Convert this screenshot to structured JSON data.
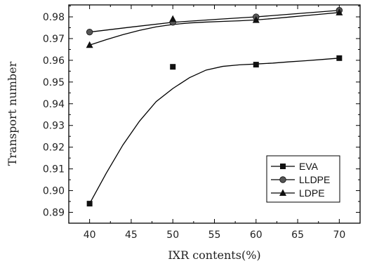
{
  "chart_data": {
    "type": "line",
    "xlabel": "IXR contents(%)",
    "ylabel": "Transport number",
    "xlim": [
      37.5,
      72.5
    ],
    "ylim": [
      0.885,
      0.9855
    ],
    "x_ticks": [
      40,
      45,
      50,
      55,
      60,
      65,
      70
    ],
    "y_ticks": [
      0.89,
      0.9,
      0.91,
      0.92,
      0.93,
      0.94,
      0.95,
      0.96,
      0.97,
      0.98
    ],
    "x_tick_labels": [
      "40",
      "45",
      "50",
      "55",
      "60",
      "65",
      "70"
    ],
    "y_tick_labels": [
      "0.89",
      "0.90",
      "0.91",
      "0.92",
      "0.93",
      "0.94",
      "0.95",
      "0.96",
      "0.97",
      "0.98"
    ],
    "grid": false,
    "legend_position": "lower-right",
    "series": [
      {
        "name": "EVA",
        "marker": "square",
        "x": [
          40,
          50,
          60,
          70
        ],
        "y": [
          0.894,
          0.957,
          0.958,
          0.961
        ],
        "fit_curve": [
          [
            40,
            0.894
          ],
          [
            42,
            0.908
          ],
          [
            44,
            0.921
          ],
          [
            46,
            0.932
          ],
          [
            48,
            0.941
          ],
          [
            50,
            0.947
          ],
          [
            52,
            0.952
          ],
          [
            54,
            0.9555
          ],
          [
            56,
            0.9572
          ],
          [
            58,
            0.9579
          ],
          [
            60,
            0.9583
          ],
          [
            62,
            0.9587
          ],
          [
            64,
            0.9593
          ],
          [
            66,
            0.9598
          ],
          [
            68,
            0.9604
          ],
          [
            70,
            0.961
          ]
        ]
      },
      {
        "name": "LLDPE",
        "marker": "circle",
        "x": [
          40,
          50,
          60,
          70
        ],
        "y": [
          0.973,
          0.9775,
          0.98,
          0.983
        ],
        "fit_curve": [
          [
            40,
            0.973
          ],
          [
            45,
            0.9753
          ],
          [
            50,
            0.9775
          ],
          [
            55,
            0.9788
          ],
          [
            60,
            0.98
          ],
          [
            65,
            0.9815
          ],
          [
            70,
            0.983
          ]
        ]
      },
      {
        "name": "LDPE",
        "marker": "triangle",
        "x": [
          40,
          50,
          60,
          70
        ],
        "y": [
          0.967,
          0.979,
          0.9785,
          0.982
        ],
        "fit_curve": [
          [
            40,
            0.967
          ],
          [
            42,
            0.9695
          ],
          [
            44,
            0.9718
          ],
          [
            46,
            0.9738
          ],
          [
            48,
            0.9754
          ],
          [
            50,
            0.9765
          ],
          [
            52,
            0.9772
          ],
          [
            54,
            0.9776
          ],
          [
            56,
            0.9779
          ],
          [
            58,
            0.9782
          ],
          [
            60,
            0.9786
          ],
          [
            62,
            0.9792
          ],
          [
            64,
            0.9799
          ],
          [
            66,
            0.9806
          ],
          [
            68,
            0.9813
          ],
          [
            70,
            0.982
          ]
        ]
      }
    ]
  }
}
